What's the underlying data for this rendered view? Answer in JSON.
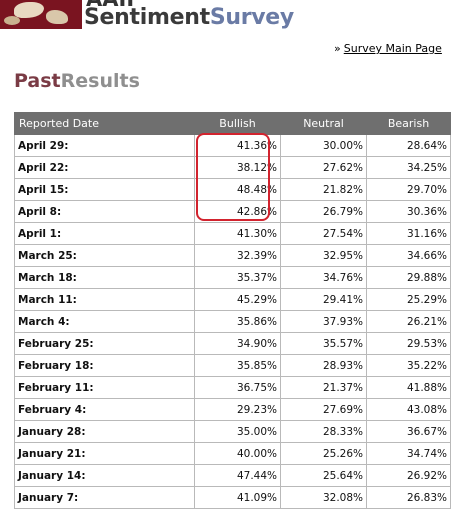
{
  "header": {
    "brand_top": "AAII",
    "brand_part1": "Sentiment",
    "brand_part2": "Survey"
  },
  "nav": {
    "arrow_glyph": "»",
    "survey_main_page": "Survey Main Page"
  },
  "section": {
    "title_part1": "Past",
    "title_part2": "Results"
  },
  "table": {
    "headers": [
      "Reported Date",
      "Bullish",
      "Neutral",
      "Bearish"
    ],
    "rows": [
      {
        "date": "April 29:",
        "bullish": "41.36%",
        "neutral": "30.00%",
        "bearish": "28.64%"
      },
      {
        "date": "April 22:",
        "bullish": "38.12%",
        "neutral": "27.62%",
        "bearish": "34.25%"
      },
      {
        "date": "April 15:",
        "bullish": "48.48%",
        "neutral": "21.82%",
        "bearish": "29.70%"
      },
      {
        "date": "April 8:",
        "bullish": "42.86%",
        "neutral": "26.79%",
        "bearish": "30.36%"
      },
      {
        "date": "April 1:",
        "bullish": "41.30%",
        "neutral": "27.54%",
        "bearish": "31.16%"
      },
      {
        "date": "March 25:",
        "bullish": "32.39%",
        "neutral": "32.95%",
        "bearish": "34.66%"
      },
      {
        "date": "March 18:",
        "bullish": "35.37%",
        "neutral": "34.76%",
        "bearish": "29.88%"
      },
      {
        "date": "March 11:",
        "bullish": "45.29%",
        "neutral": "29.41%",
        "bearish": "25.29%"
      },
      {
        "date": "March 4:",
        "bullish": "35.86%",
        "neutral": "37.93%",
        "bearish": "26.21%"
      },
      {
        "date": "February 25:",
        "bullish": "34.90%",
        "neutral": "35.57%",
        "bearish": "29.53%"
      },
      {
        "date": "February 18:",
        "bullish": "35.85%",
        "neutral": "28.93%",
        "bearish": "35.22%"
      },
      {
        "date": "February 11:",
        "bullish": "36.75%",
        "neutral": "21.37%",
        "bearish": "41.88%"
      },
      {
        "date": "February 4:",
        "bullish": "29.23%",
        "neutral": "27.69%",
        "bearish": "43.08%"
      },
      {
        "date": "January 28:",
        "bullish": "35.00%",
        "neutral": "28.33%",
        "bearish": "36.67%"
      },
      {
        "date": "January 21:",
        "bullish": "40.00%",
        "neutral": "25.26%",
        "bearish": "34.74%"
      },
      {
        "date": "January 14:",
        "bullish": "47.44%",
        "neutral": "25.64%",
        "bearish": "26.92%"
      },
      {
        "date": "January 7:",
        "bullish": "41.09%",
        "neutral": "32.08%",
        "bearish": "26.83%"
      }
    ]
  },
  "colors": {
    "highlight": "#d2232e",
    "header_bg": "#6f6f6f",
    "brand_accent": "#6a7ba5",
    "title_accent": "#7a3b45"
  }
}
